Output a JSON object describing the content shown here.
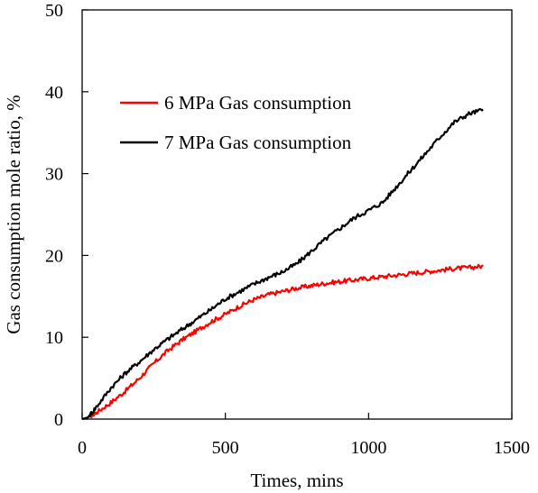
{
  "chart_data": {
    "type": "line",
    "title": "",
    "xlabel": "Times, mins",
    "ylabel": "Gas consumption mole ratio, %",
    "xlim": [
      0,
      1500
    ],
    "ylim": [
      0,
      50
    ],
    "x_ticks": [
      0,
      500,
      1000,
      1500
    ],
    "y_ticks": [
      0,
      10,
      20,
      30,
      40,
      50
    ],
    "x_tick_labels": [
      "0",
      "500",
      "1000",
      "1500"
    ],
    "y_tick_labels": [
      "0",
      "10",
      "20",
      "30",
      "40",
      "50"
    ],
    "grid": false,
    "legend_position": "upper-left",
    "series": [
      {
        "name": "6 MPa Gas consumption",
        "color": "#ff0000",
        "x": [
          0,
          20,
          50,
          100,
          150,
          200,
          250,
          300,
          350,
          400,
          450,
          500,
          550,
          600,
          650,
          700,
          750,
          800,
          850,
          900,
          950,
          1000,
          1050,
          1100,
          1150,
          1200,
          1250,
          1300,
          1350,
          1400
        ],
        "y": [
          0,
          0.2,
          0.8,
          2.0,
          3.4,
          5.0,
          6.8,
          8.4,
          9.7,
          10.8,
          11.9,
          12.8,
          13.8,
          14.6,
          15.2,
          15.6,
          16.0,
          16.3,
          16.6,
          16.8,
          17.0,
          17.2,
          17.4,
          17.6,
          17.8,
          18.0,
          18.2,
          18.4,
          18.5,
          18.7
        ]
      },
      {
        "name": "7 MPa Gas consumption",
        "color": "#000000",
        "x": [
          0,
          20,
          50,
          100,
          150,
          200,
          250,
          300,
          350,
          400,
          450,
          500,
          550,
          600,
          650,
          700,
          750,
          800,
          850,
          900,
          950,
          1000,
          1050,
          1100,
          1150,
          1200,
          1250,
          1300,
          1350,
          1400
        ],
        "y": [
          0,
          0.2,
          1.5,
          3.8,
          5.6,
          7.0,
          8.5,
          9.8,
          11.0,
          12.2,
          13.4,
          14.7,
          15.6,
          16.5,
          17.3,
          18.0,
          19.0,
          20.5,
          22.0,
          23.3,
          24.6,
          25.5,
          26.5,
          28.5,
          30.5,
          32.5,
          34.5,
          36.3,
          37.3,
          37.8
        ]
      }
    ]
  }
}
